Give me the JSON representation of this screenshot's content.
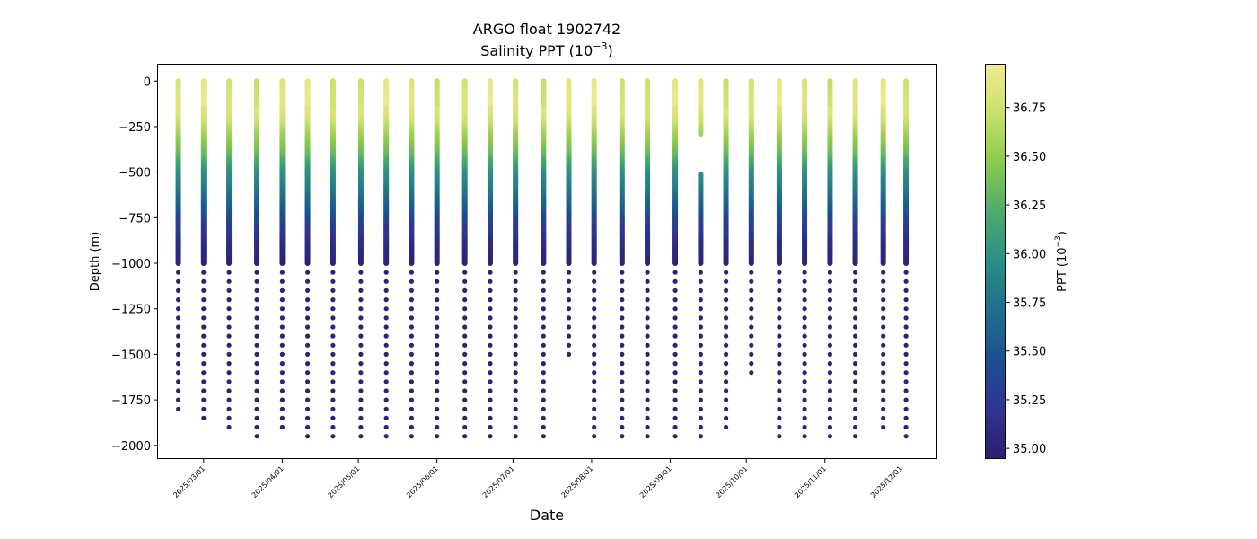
{
  "chart_data": {
    "type": "scatter",
    "title": "ARGO float 1902742",
    "subtitle_prefix": "Salinity PPT (10",
    "subtitle_exp": "−3",
    "subtitle_suffix": ")",
    "xlabel": "Date",
    "ylabel": "Depth (m)",
    "xlim": [
      "2025-02-11",
      "2025-12-15"
    ],
    "ylim": [
      -2070,
      90
    ],
    "grid": false,
    "x_ticks": [
      "2025/03/01",
      "2025/04/01",
      "2025/05/01",
      "2025/06/01",
      "2025/07/01",
      "2025/08/01",
      "2025/09/01",
      "2025/10/01",
      "2025/11/01",
      "2025/12/01"
    ],
    "y_ticks": [
      "0",
      "−250",
      "−500",
      "−750",
      "−1000",
      "−1250",
      "−1500",
      "−1750",
      "−2000"
    ],
    "y_tick_values": [
      0,
      -250,
      -500,
      -750,
      -1000,
      -1250,
      -1500,
      -1750,
      -2000
    ],
    "colorbar": {
      "label_prefix": "PPT (10",
      "label_exp": "−3",
      "label_suffix": ")",
      "range": [
        34.95,
        36.97
      ],
      "ticks": [
        "35.00",
        "35.25",
        "35.50",
        "35.75",
        "36.00",
        "36.25",
        "36.50",
        "36.75"
      ],
      "tick_values": [
        35.0,
        35.25,
        35.5,
        35.75,
        36.0,
        36.25,
        36.5,
        36.75
      ],
      "colormap_stops": [
        "#2c1f6e",
        "#2f3494",
        "#1d4f91",
        "#1f6f8b",
        "#2a8e86",
        "#4daa6c",
        "#8bc94e",
        "#c9e06d",
        "#f3ea8f"
      ]
    },
    "salinity_profile": {
      "depth": [
        0,
        -100,
        -200,
        -300,
        -400,
        -500,
        -600,
        -700,
        -800,
        -900,
        -1000,
        -1200,
        -1500,
        -2000
      ],
      "ppt": [
        36.78,
        36.85,
        36.8,
        36.55,
        36.35,
        36.0,
        35.8,
        35.55,
        35.3,
        35.1,
        35.02,
        35.0,
        35.0,
        35.0
      ]
    },
    "profiles": [
      {
        "date": "2025-02-19",
        "top": 0,
        "bottom": -1825
      },
      {
        "date": "2025-03-01",
        "top": 0,
        "bottom": -1875
      },
      {
        "date": "2025-03-11",
        "top": 0,
        "bottom": -1925
      },
      {
        "date": "2025-03-22",
        "top": 0,
        "bottom": -1975
      },
      {
        "date": "2025-04-01",
        "top": 0,
        "bottom": -1925
      },
      {
        "date": "2025-04-11",
        "top": 0,
        "bottom": -1975
      },
      {
        "date": "2025-04-21",
        "top": 0,
        "bottom": -1975
      },
      {
        "date": "2025-05-02",
        "top": 0,
        "bottom": -1975
      },
      {
        "date": "2025-05-12",
        "top": 0,
        "bottom": -1975
      },
      {
        "date": "2025-05-22",
        "top": 0,
        "bottom": -1975
      },
      {
        "date": "2025-06-01",
        "top": 0,
        "bottom": -1975
      },
      {
        "date": "2025-06-12",
        "top": 0,
        "bottom": -1975
      },
      {
        "date": "2025-06-22",
        "top": 0,
        "bottom": -1975
      },
      {
        "date": "2025-07-02",
        "top": 0,
        "bottom": -1975
      },
      {
        "date": "2025-07-13",
        "top": 0,
        "bottom": -1975
      },
      {
        "date": "2025-07-23",
        "top": 0,
        "bottom": -1540
      },
      {
        "date": "2025-08-02",
        "top": 0,
        "bottom": -1975
      },
      {
        "date": "2025-08-13",
        "top": 0,
        "bottom": -1975
      },
      {
        "date": "2025-08-23",
        "top": 0,
        "bottom": -1975
      },
      {
        "date": "2025-09-03",
        "top": 0,
        "bottom": -1975
      },
      {
        "date": "2025-09-13",
        "top": 0,
        "bottom": -1975,
        "gap": [
          -290,
          -510
        ]
      },
      {
        "date": "2025-09-23",
        "top": 0,
        "bottom": -1925
      },
      {
        "date": "2025-10-03",
        "top": 0,
        "bottom": -1630
      },
      {
        "date": "2025-10-14",
        "top": 0,
        "bottom": -1975
      },
      {
        "date": "2025-10-24",
        "top": 0,
        "bottom": -1975
      },
      {
        "date": "2025-11-03",
        "top": 0,
        "bottom": -1975
      },
      {
        "date": "2025-11-13",
        "top": 0,
        "bottom": -1975
      },
      {
        "date": "2025-11-24",
        "top": 0,
        "bottom": -1925
      },
      {
        "date": "2025-12-03",
        "top": 0,
        "bottom": -1975
      }
    ]
  }
}
